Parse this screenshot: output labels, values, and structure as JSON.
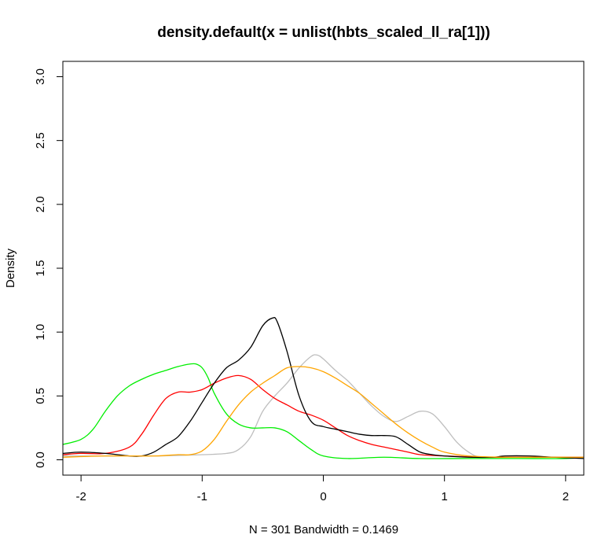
{
  "chart_data": {
    "type": "line",
    "title": "density.default(x = unlist(hbts_scaled_ll_ra[1]))",
    "xlabel": "N = 301   Bandwidth = 0.1469",
    "ylabel": "Density",
    "xlim": [
      -2.15,
      2.15
    ],
    "ylim": [
      -0.12,
      3.12
    ],
    "x_ticks": [
      -2,
      -1,
      0,
      1,
      2
    ],
    "x_tick_labels": [
      "-2",
      "-1",
      "0",
      "1",
      "2"
    ],
    "y_ticks": [
      0.0,
      0.5,
      1.0,
      1.5,
      2.0,
      2.5,
      3.0
    ],
    "y_tick_labels": [
      "0.0",
      "0.5",
      "1.0",
      "1.5",
      "2.0",
      "2.5",
      "3.0"
    ],
    "grid": false,
    "series": [
      {
        "color": "#bebebe",
        "points": [
          [
            -2.15,
            0.03
          ],
          [
            -1.8,
            0.03
          ],
          [
            -1.4,
            0.03
          ],
          [
            -1.0,
            0.04
          ],
          [
            -0.8,
            0.05
          ],
          [
            -0.7,
            0.08
          ],
          [
            -0.6,
            0.18
          ],
          [
            -0.5,
            0.38
          ],
          [
            -0.4,
            0.5
          ],
          [
            -0.3,
            0.6
          ],
          [
            -0.2,
            0.72
          ],
          [
            -0.1,
            0.81
          ],
          [
            -0.05,
            0.82
          ],
          [
            0.0,
            0.79
          ],
          [
            0.1,
            0.7
          ],
          [
            0.2,
            0.62
          ],
          [
            0.3,
            0.52
          ],
          [
            0.4,
            0.42
          ],
          [
            0.5,
            0.34
          ],
          [
            0.6,
            0.3
          ],
          [
            0.7,
            0.34
          ],
          [
            0.8,
            0.38
          ],
          [
            0.9,
            0.36
          ],
          [
            1.0,
            0.26
          ],
          [
            1.1,
            0.14
          ],
          [
            1.2,
            0.06
          ],
          [
            1.3,
            0.02
          ],
          [
            1.5,
            0.02
          ],
          [
            1.8,
            0.02
          ],
          [
            2.15,
            0.02
          ]
        ]
      },
      {
        "color": "#00ee00",
        "points": [
          [
            -2.15,
            0.12
          ],
          [
            -2.0,
            0.16
          ],
          [
            -1.9,
            0.24
          ],
          [
            -1.8,
            0.38
          ],
          [
            -1.7,
            0.5
          ],
          [
            -1.6,
            0.58
          ],
          [
            -1.5,
            0.63
          ],
          [
            -1.4,
            0.67
          ],
          [
            -1.3,
            0.7
          ],
          [
            -1.2,
            0.73
          ],
          [
            -1.1,
            0.75
          ],
          [
            -1.05,
            0.75
          ],
          [
            -1.0,
            0.72
          ],
          [
            -0.95,
            0.64
          ],
          [
            -0.9,
            0.52
          ],
          [
            -0.8,
            0.36
          ],
          [
            -0.7,
            0.28
          ],
          [
            -0.6,
            0.25
          ],
          [
            -0.5,
            0.25
          ],
          [
            -0.4,
            0.25
          ],
          [
            -0.3,
            0.22
          ],
          [
            -0.2,
            0.15
          ],
          [
            -0.1,
            0.08
          ],
          [
            0.0,
            0.03
          ],
          [
            0.2,
            0.01
          ],
          [
            0.5,
            0.02
          ],
          [
            0.8,
            0.01
          ],
          [
            1.2,
            0.01
          ],
          [
            1.6,
            0.01
          ],
          [
            2.0,
            0.01
          ],
          [
            2.15,
            0.02
          ]
        ]
      },
      {
        "color": "#ff0000",
        "points": [
          [
            -2.15,
            0.04
          ],
          [
            -2.0,
            0.05
          ],
          [
            -1.8,
            0.05
          ],
          [
            -1.6,
            0.1
          ],
          [
            -1.5,
            0.2
          ],
          [
            -1.4,
            0.35
          ],
          [
            -1.3,
            0.48
          ],
          [
            -1.2,
            0.53
          ],
          [
            -1.1,
            0.53
          ],
          [
            -1.0,
            0.55
          ],
          [
            -0.9,
            0.6
          ],
          [
            -0.8,
            0.64
          ],
          [
            -0.7,
            0.66
          ],
          [
            -0.6,
            0.63
          ],
          [
            -0.5,
            0.55
          ],
          [
            -0.4,
            0.48
          ],
          [
            -0.3,
            0.43
          ],
          [
            -0.2,
            0.38
          ],
          [
            -0.1,
            0.35
          ],
          [
            0.0,
            0.31
          ],
          [
            0.1,
            0.25
          ],
          [
            0.2,
            0.19
          ],
          [
            0.3,
            0.15
          ],
          [
            0.4,
            0.12
          ],
          [
            0.5,
            0.1
          ],
          [
            0.6,
            0.08
          ],
          [
            0.7,
            0.06
          ],
          [
            0.8,
            0.04
          ],
          [
            1.0,
            0.03
          ],
          [
            1.3,
            0.02
          ],
          [
            1.6,
            0.02
          ],
          [
            2.0,
            0.02
          ],
          [
            2.15,
            0.02
          ]
        ]
      },
      {
        "color": "#000000",
        "points": [
          [
            -2.15,
            0.05
          ],
          [
            -2.0,
            0.06
          ],
          [
            -1.8,
            0.05
          ],
          [
            -1.6,
            0.03
          ],
          [
            -1.5,
            0.03
          ],
          [
            -1.4,
            0.06
          ],
          [
            -1.3,
            0.12
          ],
          [
            -1.2,
            0.18
          ],
          [
            -1.1,
            0.3
          ],
          [
            -1.0,
            0.45
          ],
          [
            -0.9,
            0.6
          ],
          [
            -0.8,
            0.72
          ],
          [
            -0.7,
            0.78
          ],
          [
            -0.6,
            0.88
          ],
          [
            -0.5,
            1.05
          ],
          [
            -0.42,
            1.11
          ],
          [
            -0.38,
            1.08
          ],
          [
            -0.3,
            0.85
          ],
          [
            -0.2,
            0.5
          ],
          [
            -0.1,
            0.3
          ],
          [
            0.0,
            0.26
          ],
          [
            0.1,
            0.24
          ],
          [
            0.2,
            0.22
          ],
          [
            0.3,
            0.2
          ],
          [
            0.4,
            0.19
          ],
          [
            0.5,
            0.19
          ],
          [
            0.6,
            0.18
          ],
          [
            0.7,
            0.12
          ],
          [
            0.8,
            0.06
          ],
          [
            0.9,
            0.04
          ],
          [
            1.0,
            0.03
          ],
          [
            1.2,
            0.02
          ],
          [
            1.4,
            0.02
          ],
          [
            1.5,
            0.03
          ],
          [
            1.7,
            0.03
          ],
          [
            1.9,
            0.02
          ],
          [
            2.15,
            0.01
          ]
        ]
      },
      {
        "color": "#ffa500",
        "points": [
          [
            -2.15,
            0.02
          ],
          [
            -1.8,
            0.03
          ],
          [
            -1.4,
            0.03
          ],
          [
            -1.2,
            0.04
          ],
          [
            -1.1,
            0.04
          ],
          [
            -1.0,
            0.07
          ],
          [
            -0.9,
            0.16
          ],
          [
            -0.8,
            0.3
          ],
          [
            -0.7,
            0.43
          ],
          [
            -0.6,
            0.53
          ],
          [
            -0.5,
            0.6
          ],
          [
            -0.4,
            0.66
          ],
          [
            -0.3,
            0.72
          ],
          [
            -0.2,
            0.73
          ],
          [
            -0.1,
            0.72
          ],
          [
            0.0,
            0.69
          ],
          [
            0.1,
            0.64
          ],
          [
            0.2,
            0.58
          ],
          [
            0.3,
            0.52
          ],
          [
            0.4,
            0.44
          ],
          [
            0.5,
            0.36
          ],
          [
            0.6,
            0.28
          ],
          [
            0.7,
            0.21
          ],
          [
            0.8,
            0.15
          ],
          [
            0.9,
            0.1
          ],
          [
            1.0,
            0.06
          ],
          [
            1.2,
            0.03
          ],
          [
            1.5,
            0.02
          ],
          [
            1.8,
            0.02
          ],
          [
            2.15,
            0.02
          ]
        ]
      }
    ]
  }
}
